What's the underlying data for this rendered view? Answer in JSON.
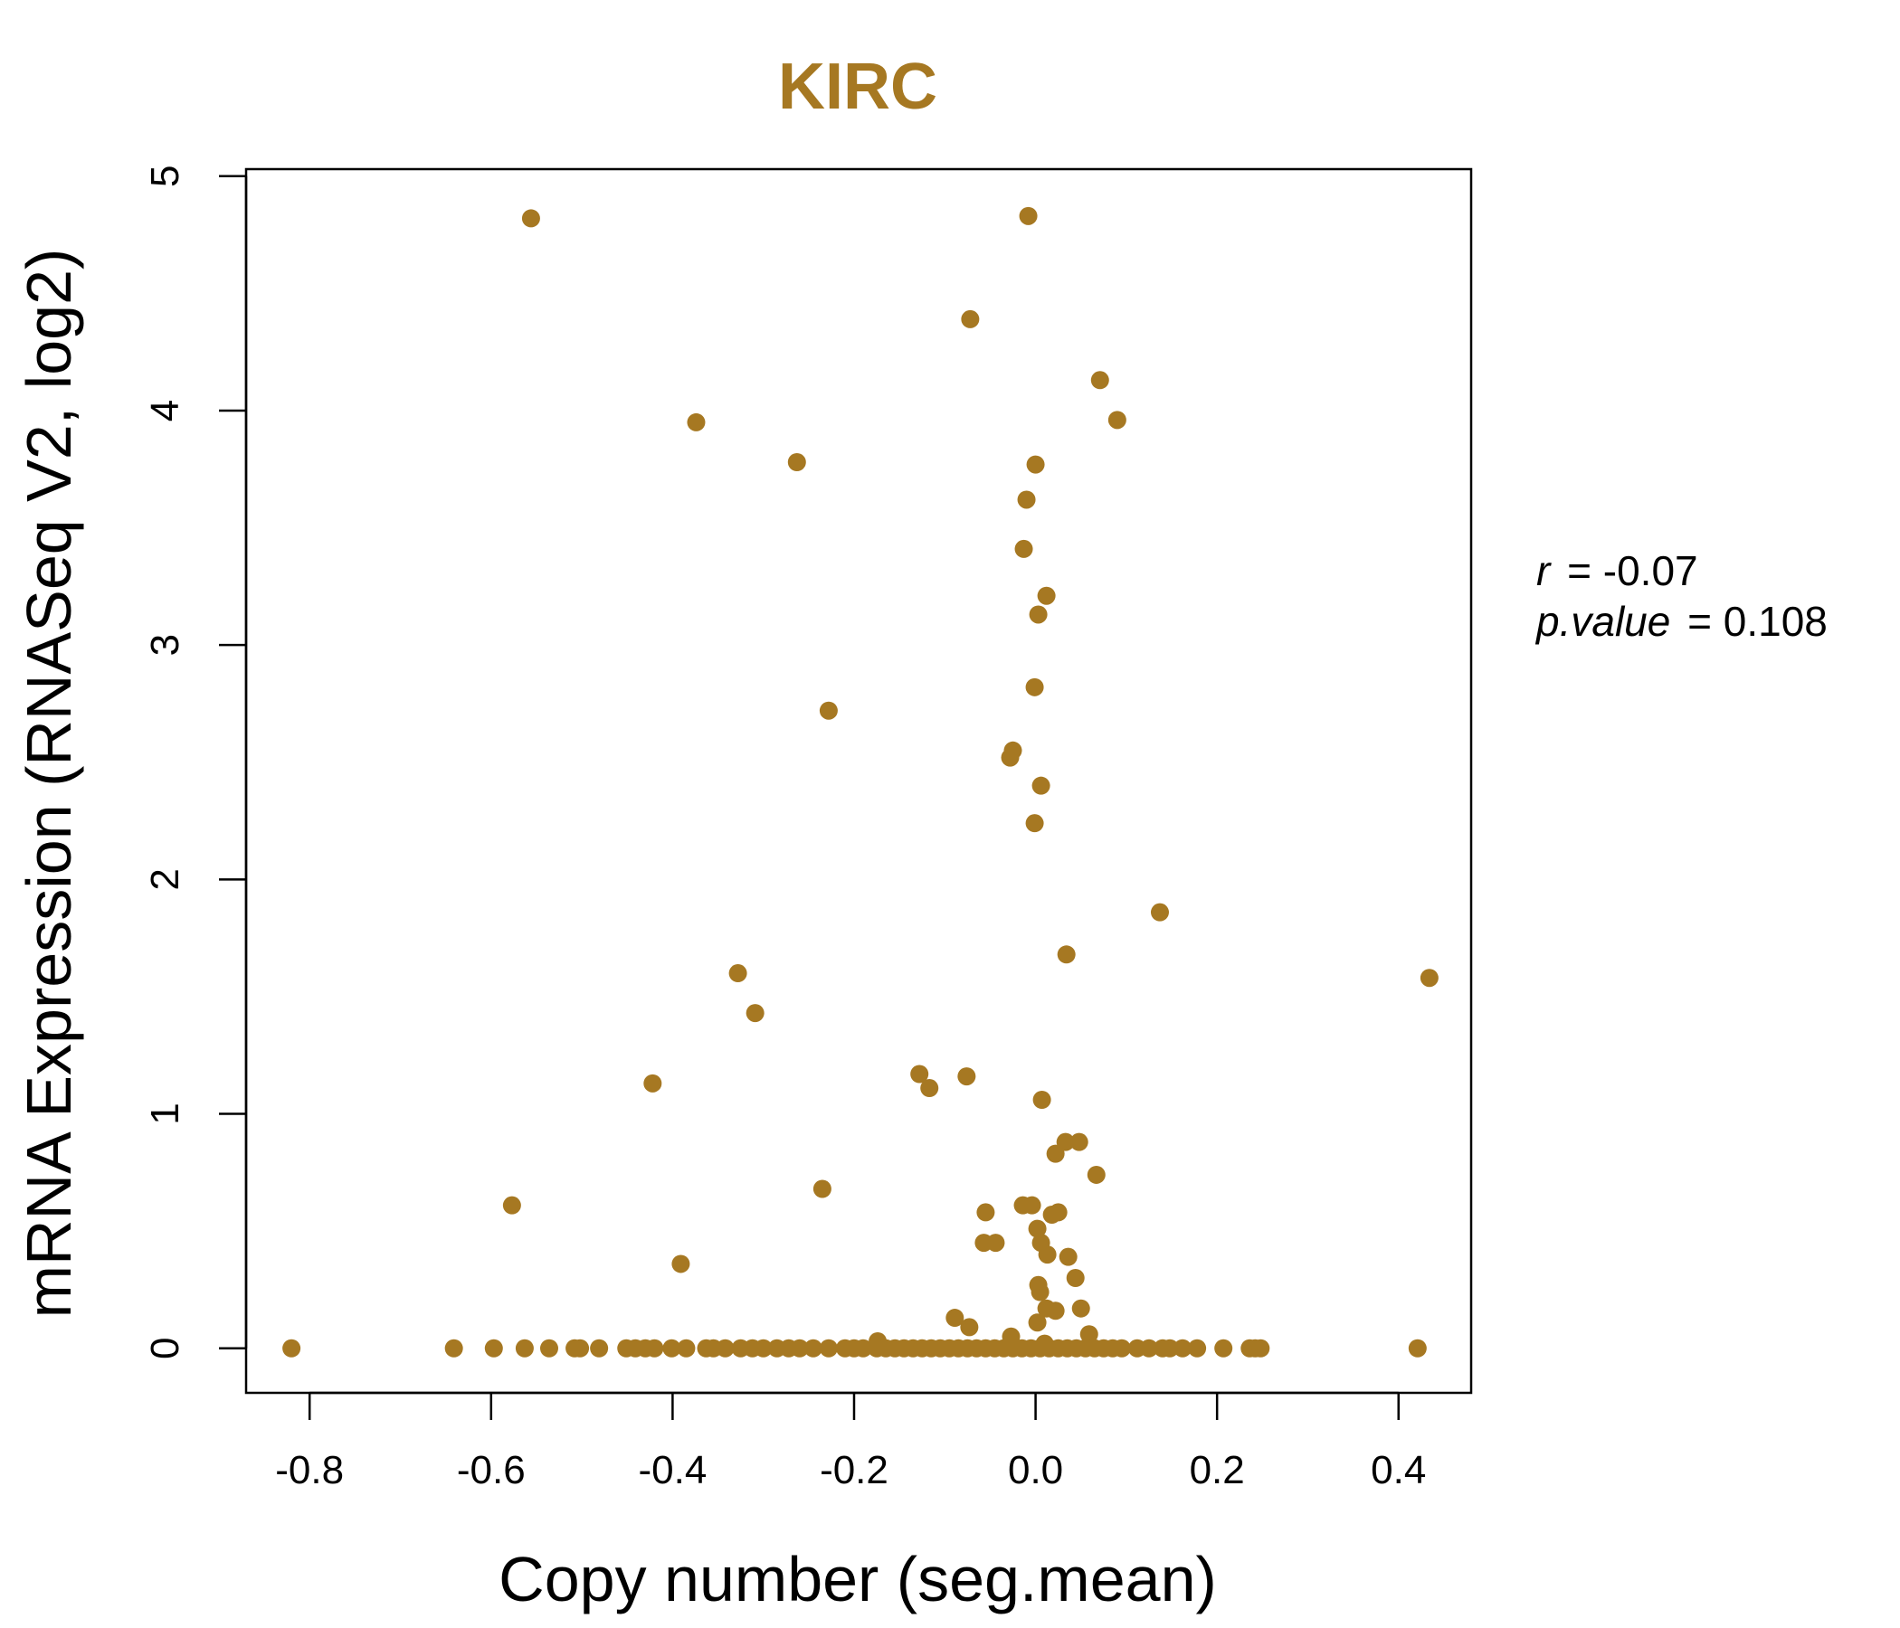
{
  "chart_data": {
    "type": "scatter",
    "title": "KIRC",
    "xlabel": "Copy number (seg.mean)",
    "ylabel": "mRNA Expression (RNASeq V2, log2)",
    "xlim": [
      -0.87,
      0.48
    ],
    "ylim": [
      -0.19,
      5.03
    ],
    "x_ticks": [
      -0.8,
      -0.6,
      -0.4,
      -0.2,
      0.0,
      0.2,
      0.4
    ],
    "x_tick_labels": [
      "-0.8",
      "-0.6",
      "-0.4",
      "-0.2",
      "0.0",
      "0.2",
      "0.4"
    ],
    "y_ticks": [
      0,
      1,
      2,
      3,
      4,
      5
    ],
    "y_tick_labels": [
      "0",
      "1",
      "2",
      "3",
      "4",
      "5"
    ],
    "grid": false,
    "point_color": "#A67822",
    "stats": {
      "r_key": "r",
      "r_value": "-0.07",
      "p_key": "p.value",
      "p_value": "0.108"
    },
    "points": [
      {
        "x": -0.556,
        "y": 4.82
      },
      {
        "x": -0.008,
        "y": 4.83
      },
      {
        "x": -0.072,
        "y": 4.39
      },
      {
        "x": 0.071,
        "y": 4.13
      },
      {
        "x": -0.374,
        "y": 3.95
      },
      {
        "x": 0.09,
        "y": 3.96
      },
      {
        "x": -0.263,
        "y": 3.78
      },
      {
        "x": 0.0,
        "y": 3.77
      },
      {
        "x": -0.01,
        "y": 3.62
      },
      {
        "x": -0.013,
        "y": 3.41
      },
      {
        "x": 0.012,
        "y": 3.21
      },
      {
        "x": 0.003,
        "y": 3.13
      },
      {
        "x": -0.001,
        "y": 2.82
      },
      {
        "x": -0.228,
        "y": 2.72
      },
      {
        "x": -0.025,
        "y": 2.55
      },
      {
        "x": -0.028,
        "y": 2.52
      },
      {
        "x": 0.006,
        "y": 2.4
      },
      {
        "x": -0.001,
        "y": 2.24
      },
      {
        "x": 0.137,
        "y": 1.86
      },
      {
        "x": 0.034,
        "y": 1.68
      },
      {
        "x": -0.328,
        "y": 1.6
      },
      {
        "x": 0.434,
        "y": 1.58
      },
      {
        "x": -0.309,
        "y": 1.43
      },
      {
        "x": -0.128,
        "y": 1.17
      },
      {
        "x": -0.076,
        "y": 1.16
      },
      {
        "x": -0.422,
        "y": 1.13
      },
      {
        "x": -0.117,
        "y": 1.11
      },
      {
        "x": 0.007,
        "y": 1.06
      },
      {
        "x": 0.033,
        "y": 0.88
      },
      {
        "x": 0.048,
        "y": 0.88
      },
      {
        "x": 0.022,
        "y": 0.83
      },
      {
        "x": 0.067,
        "y": 0.74
      },
      {
        "x": -0.235,
        "y": 0.68
      },
      {
        "x": -0.577,
        "y": 0.61
      },
      {
        "x": -0.014,
        "y": 0.61
      },
      {
        "x": -0.004,
        "y": 0.61
      },
      {
        "x": -0.055,
        "y": 0.58
      },
      {
        "x": 0.018,
        "y": 0.57
      },
      {
        "x": 0.025,
        "y": 0.58
      },
      {
        "x": 0.002,
        "y": 0.51
      },
      {
        "x": -0.057,
        "y": 0.45
      },
      {
        "x": -0.044,
        "y": 0.45
      },
      {
        "x": 0.006,
        "y": 0.45
      },
      {
        "x": 0.013,
        "y": 0.4
      },
      {
        "x": 0.036,
        "y": 0.39
      },
      {
        "x": -0.391,
        "y": 0.36
      },
      {
        "x": 0.044,
        "y": 0.3
      },
      {
        "x": 0.003,
        "y": 0.27
      },
      {
        "x": 0.005,
        "y": 0.24
      },
      {
        "x": 0.05,
        "y": 0.17
      },
      {
        "x": 0.012,
        "y": 0.17
      },
      {
        "x": 0.022,
        "y": 0.16
      },
      {
        "x": -0.089,
        "y": 0.13
      },
      {
        "x": 0.002,
        "y": 0.11
      },
      {
        "x": -0.073,
        "y": 0.09
      },
      {
        "x": 0.059,
        "y": 0.06
      },
      {
        "x": -0.027,
        "y": 0.05
      },
      {
        "x": -0.174,
        "y": 0.03
      },
      {
        "x": 0.01,
        "y": 0.02
      },
      {
        "x": -0.82,
        "y": 0
      },
      {
        "x": -0.641,
        "y": 0
      },
      {
        "x": -0.597,
        "y": 0
      },
      {
        "x": -0.563,
        "y": 0
      },
      {
        "x": -0.536,
        "y": 0
      },
      {
        "x": -0.508,
        "y": 0
      },
      {
        "x": -0.502,
        "y": 0
      },
      {
        "x": -0.481,
        "y": 0
      },
      {
        "x": -0.451,
        "y": 0
      },
      {
        "x": -0.441,
        "y": 0
      },
      {
        "x": -0.43,
        "y": 0
      },
      {
        "x": -0.42,
        "y": 0
      },
      {
        "x": -0.401,
        "y": 0
      },
      {
        "x": -0.385,
        "y": 0
      },
      {
        "x": -0.363,
        "y": 0
      },
      {
        "x": -0.355,
        "y": 0
      },
      {
        "x": -0.342,
        "y": 0
      },
      {
        "x": -0.325,
        "y": 0
      },
      {
        "x": -0.312,
        "y": 0
      },
      {
        "x": -0.3,
        "y": 0
      },
      {
        "x": -0.285,
        "y": 0
      },
      {
        "x": -0.272,
        "y": 0
      },
      {
        "x": -0.26,
        "y": 0
      },
      {
        "x": -0.245,
        "y": 0
      },
      {
        "x": -0.228,
        "y": 0
      },
      {
        "x": -0.21,
        "y": 0
      },
      {
        "x": -0.2,
        "y": 0
      },
      {
        "x": -0.19,
        "y": 0
      },
      {
        "x": -0.175,
        "y": 0
      },
      {
        "x": -0.165,
        "y": 0
      },
      {
        "x": -0.155,
        "y": 0
      },
      {
        "x": -0.145,
        "y": 0
      },
      {
        "x": -0.135,
        "y": 0
      },
      {
        "x": -0.125,
        "y": 0
      },
      {
        "x": -0.115,
        "y": 0
      },
      {
        "x": -0.105,
        "y": 0
      },
      {
        "x": -0.095,
        "y": 0
      },
      {
        "x": -0.085,
        "y": 0
      },
      {
        "x": -0.075,
        "y": 0
      },
      {
        "x": -0.065,
        "y": 0
      },
      {
        "x": -0.055,
        "y": 0
      },
      {
        "x": -0.045,
        "y": 0
      },
      {
        "x": -0.035,
        "y": 0
      },
      {
        "x": -0.025,
        "y": 0
      },
      {
        "x": -0.015,
        "y": 0
      },
      {
        "x": -0.005,
        "y": 0
      },
      {
        "x": 0.005,
        "y": 0
      },
      {
        "x": 0.015,
        "y": 0
      },
      {
        "x": 0.025,
        "y": 0
      },
      {
        "x": 0.035,
        "y": 0
      },
      {
        "x": 0.045,
        "y": 0
      },
      {
        "x": 0.055,
        "y": 0
      },
      {
        "x": 0.065,
        "y": 0
      },
      {
        "x": 0.075,
        "y": 0
      },
      {
        "x": 0.085,
        "y": 0
      },
      {
        "x": 0.095,
        "y": 0
      },
      {
        "x": 0.112,
        "y": 0
      },
      {
        "x": 0.125,
        "y": 0
      },
      {
        "x": 0.14,
        "y": 0
      },
      {
        "x": 0.148,
        "y": 0
      },
      {
        "x": 0.162,
        "y": 0
      },
      {
        "x": 0.178,
        "y": 0
      },
      {
        "x": 0.207,
        "y": 0
      },
      {
        "x": 0.236,
        "y": 0
      },
      {
        "x": 0.242,
        "y": 0
      },
      {
        "x": 0.248,
        "y": 0
      },
      {
        "x": 0.421,
        "y": 0
      }
    ]
  }
}
